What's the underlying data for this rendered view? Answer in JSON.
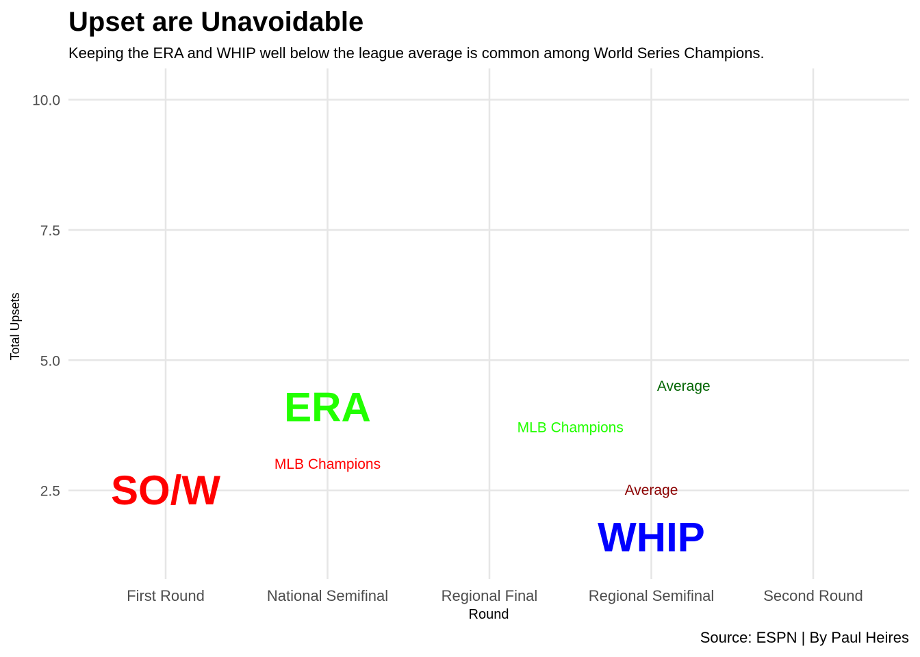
{
  "header": {
    "title": "Upset are Unavoidable",
    "subtitle": "Keeping the ERA and WHIP well below the league average is common among World Series Champions."
  },
  "caption": "Source: ESPN | By Paul Heires",
  "chart_data": {
    "type": "scatter",
    "title": "Upset are Unavoidable",
    "subtitle": "Keeping the ERA and WHIP well below the league average is common among World Series Champions.",
    "xlabel": "Round",
    "ylabel": "Total Upsets",
    "categories": [
      "First Round",
      "National Semifinal",
      "Regional Final",
      "Regional Semifinal",
      "Second Round"
    ],
    "y_ticks": [
      2.5,
      5.0,
      7.5,
      10.0
    ],
    "y_tick_labels": [
      "2.5",
      "5.0",
      "7.5",
      "10.0"
    ],
    "ylim": [
      0.8,
      10.6
    ],
    "grid": true,
    "annotations": [
      {
        "text": "SO/W",
        "x": "First Round",
        "x_offset": 0,
        "y": 2.5,
        "color": "#FF0000",
        "size": "large"
      },
      {
        "text": "ERA",
        "x": "National Semifinal",
        "x_offset": 0,
        "y": 4.1,
        "color": "#22FF00",
        "size": "large"
      },
      {
        "text": "WHIP",
        "x": "Regional Semifinal",
        "x_offset": 0,
        "y": 1.6,
        "color": "#0000FF",
        "size": "large"
      },
      {
        "text": "MLB Champions",
        "x": "National Semifinal",
        "x_offset": 0,
        "y": 3.0,
        "color": "#FF0000",
        "size": "small"
      },
      {
        "text": "MLB Champions",
        "x": "Regional Final",
        "x_offset": 0.5,
        "y": 3.7,
        "color": "#22FF00",
        "size": "small"
      },
      {
        "text": "Average",
        "x": "Regional Semifinal",
        "x_offset": 0.2,
        "y": 4.5,
        "color": "#006400",
        "size": "small"
      },
      {
        "text": "Average",
        "x": "Regional Semifinal",
        "x_offset": 0,
        "y": 2.5,
        "color": "#8B0000",
        "size": "small"
      }
    ]
  }
}
